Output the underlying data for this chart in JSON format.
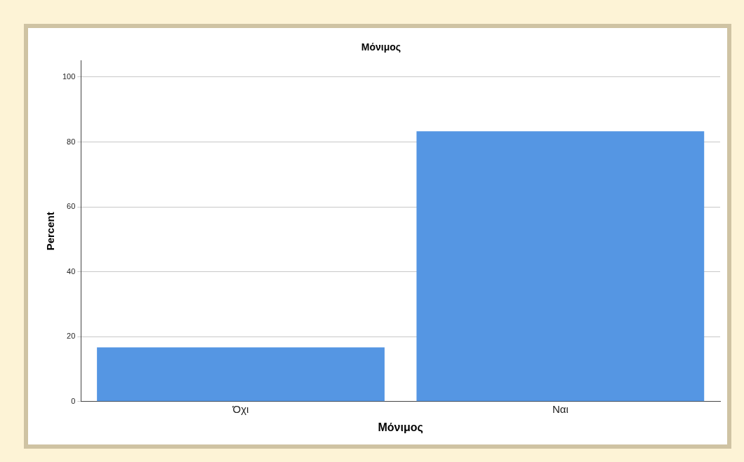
{
  "chart_data": {
    "type": "bar",
    "title": "Μόνιμος",
    "xlabel": "Μόνιμος",
    "ylabel": "Percent",
    "categories": [
      "Όχι",
      "Ναι"
    ],
    "values": [
      16.7,
      83.3
    ],
    "color": "#5596e3",
    "ylim": [
      0,
      105
    ],
    "yticks": [
      0,
      20,
      40,
      60,
      80,
      100
    ],
    "grid": "y"
  }
}
